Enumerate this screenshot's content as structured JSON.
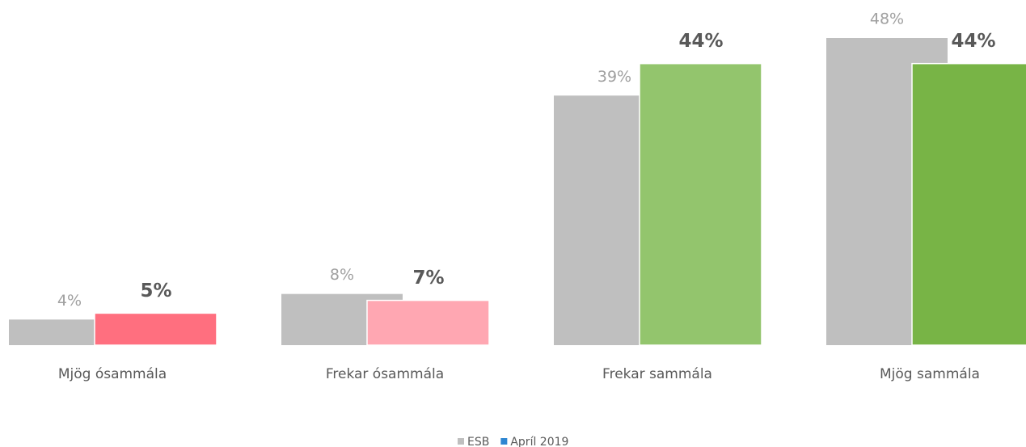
{
  "chart_data": {
    "type": "bar",
    "categories": [
      "Mjög ósammála",
      "Frekar ósammála",
      "Frekar sammála",
      "Mjög sammála"
    ],
    "series": [
      {
        "name": "ESB",
        "color": "#bfbfbf",
        "values": [
          4,
          8,
          39,
          48
        ],
        "value_labels": [
          "4%",
          "8%",
          "39%",
          "48%"
        ]
      },
      {
        "name": "Apríl 2019",
        "color": "#2e86d1",
        "colors": [
          "#ff6f7f",
          "#ffa7b2",
          "#93c56d",
          "#78b446"
        ],
        "values": [
          5,
          7,
          44,
          44
        ],
        "value_labels": [
          "5%",
          "7%",
          "44%",
          "44%"
        ]
      }
    ],
    "legend": "bottom"
  }
}
